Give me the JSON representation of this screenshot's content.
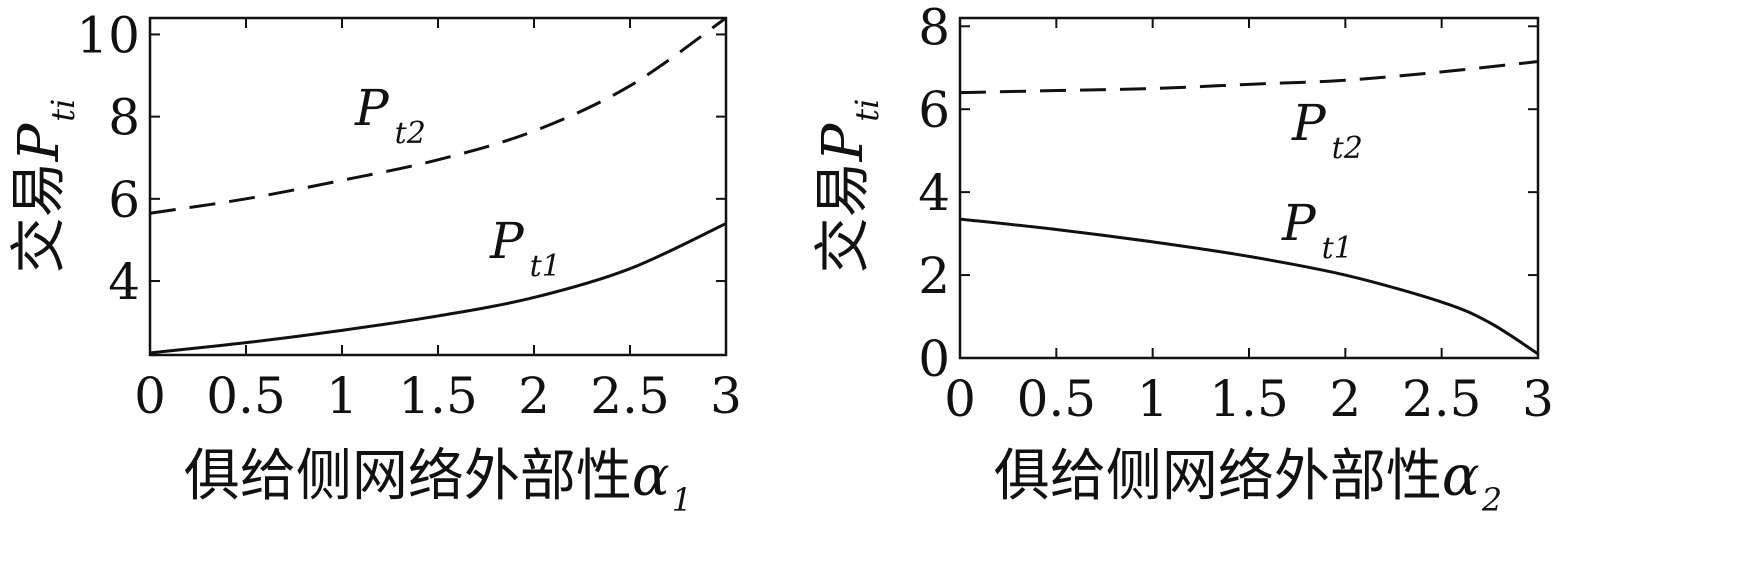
{
  "chart_data": [
    {
      "type": "line",
      "xlabel": "俱给侧网络外部性",
      "xlabel_symbol": "α",
      "xlabel_subscript": "1",
      "ylabel": "交易",
      "ylabel_symbol": "P",
      "ylabel_subscript": "ti",
      "xlim": [
        0,
        3
      ],
      "ylim": [
        2.2,
        10.4
      ],
      "xticks": [
        "0",
        "0.5",
        "1",
        "1.5",
        "2",
        "2.5",
        "3"
      ],
      "yticks": [
        "4",
        "6",
        "8",
        "10"
      ],
      "grid": false,
      "series": [
        {
          "name": "P",
          "subscript": "t1",
          "style": "solid",
          "x": [
            0,
            0.5,
            1,
            1.5,
            2,
            2.5,
            3
          ],
          "y": [
            2.25,
            2.5,
            2.8,
            3.15,
            3.6,
            4.3,
            5.4
          ]
        },
        {
          "name": "P",
          "subscript": "t2",
          "style": "dashed",
          "x": [
            0,
            0.5,
            1,
            1.5,
            2,
            2.5,
            3
          ],
          "y": [
            5.65,
            6.0,
            6.45,
            6.95,
            7.65,
            8.75,
            10.4
          ]
        }
      ]
    },
    {
      "type": "line",
      "xlabel": "俱给侧网络外部性",
      "xlabel_symbol": "α",
      "xlabel_subscript": "2",
      "ylabel": "交易",
      "ylabel_symbol": "P",
      "ylabel_subscript": "ti",
      "xlim": [
        0,
        3
      ],
      "ylim": [
        0,
        8.2
      ],
      "xticks": [
        "0",
        "0.5",
        "1",
        "1.5",
        "2",
        "2.5",
        "3"
      ],
      "yticks": [
        "0",
        "2",
        "4",
        "6",
        "8"
      ],
      "grid": false,
      "series": [
        {
          "name": "P",
          "subscript": "t1",
          "style": "solid",
          "x": [
            0,
            0.5,
            1,
            1.5,
            2,
            2.5,
            2.75,
            3
          ],
          "y": [
            3.35,
            3.1,
            2.8,
            2.45,
            2.0,
            1.35,
            0.85,
            0.1
          ]
        },
        {
          "name": "P",
          "subscript": "t2",
          "style": "dashed",
          "x": [
            0,
            0.5,
            1,
            1.5,
            2,
            2.5,
            3
          ],
          "y": [
            6.4,
            6.45,
            6.5,
            6.6,
            6.7,
            6.9,
            7.15
          ]
        }
      ]
    }
  ]
}
